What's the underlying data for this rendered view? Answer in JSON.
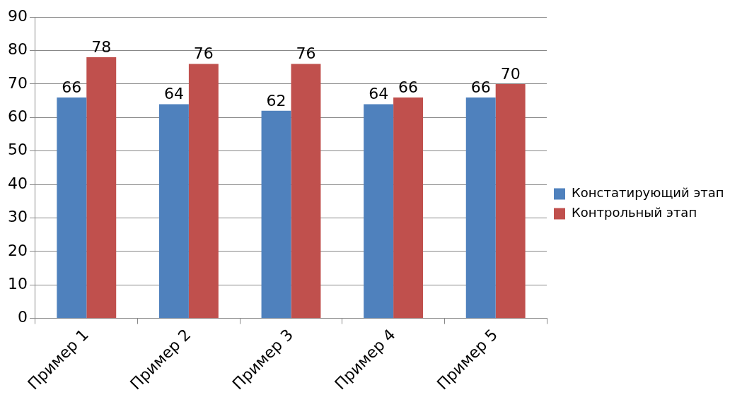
{
  "chart_data": {
    "type": "bar",
    "categories": [
      "Пример 1",
      "Пример 2",
      "Пример 3",
      "Пример 4",
      "Пример 5"
    ],
    "series": [
      {
        "name": "Констатирующий этап",
        "color": "#4f81bd",
        "values": [
          66,
          64,
          62,
          64,
          66
        ]
      },
      {
        "name": "Контрольный этап",
        "color": "#c0504d",
        "values": [
          78,
          76,
          76,
          66,
          70
        ]
      }
    ],
    "ylim": [
      0,
      90
    ],
    "yticks": [
      0,
      10,
      20,
      30,
      40,
      50,
      60,
      70,
      80,
      90
    ],
    "grid": "y",
    "legend": "right",
    "data_labels": true
  }
}
